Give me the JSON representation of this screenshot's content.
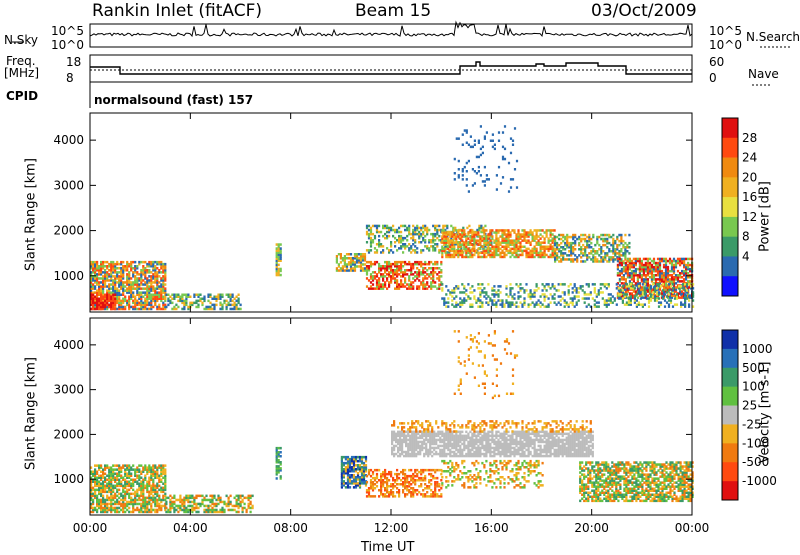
{
  "header": {
    "title": "Rankin Inlet (fitACF)",
    "beam": "Beam 15",
    "date": "03/Oct/2009"
  },
  "strip_labels": {
    "nsky": "N.Sky",
    "nsearch": "N.Search",
    "freq": "Freq.",
    "freq_unit": "[MHz]",
    "nave": "Nave",
    "cpid": "CPID",
    "cpid_value": "normalsound (fast) 157",
    "nsky_top": "10^5",
    "nsky_bottom": "10^0",
    "nsearch_top": "10^5",
    "nsearch_bottom": "10^0",
    "freq_top": "18",
    "freq_bottom": "8",
    "nave_top": "60",
    "nave_bottom": "0"
  },
  "chart_data": [
    {
      "type": "heatmap",
      "name": "power",
      "ylabel": "Slant Range [km]",
      "xlabel": "",
      "yticks": [
        "1000",
        "2000",
        "3000",
        "4000"
      ],
      "ylim": [
        200,
        4600
      ],
      "colorbar": {
        "label": "Power [dB]",
        "ticks": [
          "28",
          "24",
          "20",
          "16",
          "12",
          "8",
          "4"
        ],
        "colors": [
          "#e01010",
          "#ff4a10",
          "#f08a10",
          "#f0b020",
          "#e8e040",
          "#78c850",
          "#3a9a68",
          "#2a6ab0",
          "#1010ff"
        ]
      }
    },
    {
      "type": "heatmap",
      "name": "velocity",
      "ylabel": "Slant Range [km]",
      "xlabel": "Time UT",
      "xticks": [
        "00:00",
        "04:00",
        "08:00",
        "12:00",
        "16:00",
        "20:00",
        "00:00"
      ],
      "yticks": [
        "1000",
        "2000",
        "3000",
        "4000"
      ],
      "ylim": [
        200,
        4600
      ],
      "colorbar": {
        "label": "Velocity [m s-1]",
        "ticks": [
          "1000",
          "500",
          "100",
          "25",
          "-25",
          "-100",
          "-500",
          "-1000"
        ],
        "colors": [
          "#1030a8",
          "#2870b8",
          "#3a9a68",
          "#60c040",
          "#bcbcbc",
          "#f0b020",
          "#f07a10",
          "#ff4a10",
          "#e01010"
        ]
      }
    }
  ]
}
